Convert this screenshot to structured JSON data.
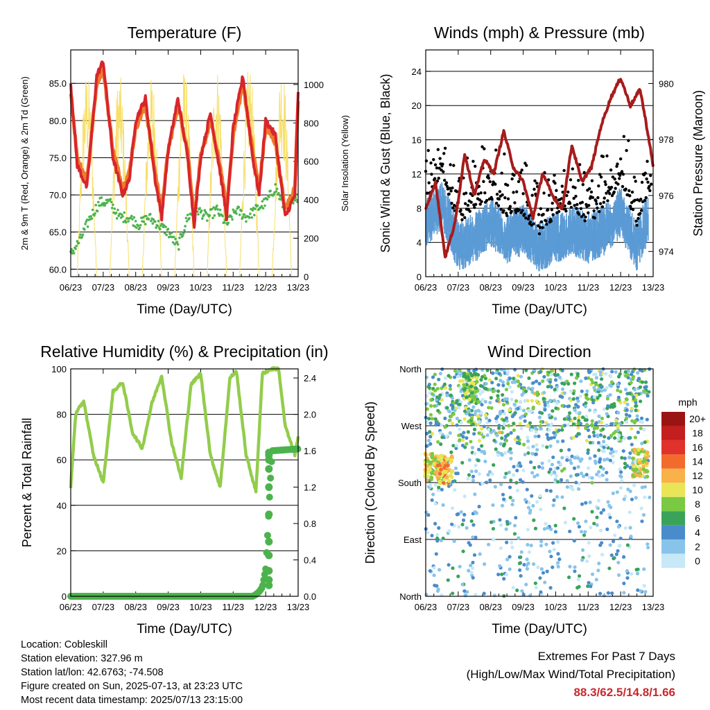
{
  "ticks_x": [
    "06/23",
    "07/23",
    "08/23",
    "09/23",
    "10/23",
    "11/23",
    "12/23",
    "13/23"
  ],
  "info": {
    "location": "Location: Cobleskill",
    "elevation": "Station elevation: 327.96 m",
    "latlon": "Station lat/lon: 42.6763; -74.508",
    "created": "Figure created on Sun, 2025-07-13, at 23:23 UTC",
    "timestamp": "Most recent data timestamp: 2025/07/13 23:15:00"
  },
  "extremes": {
    "title": "Extremes For Past 7 Days",
    "subtitle": "(High/Low/Max Wind/Total Precipitation)",
    "values": "88.3/62.5/14.8/1.66"
  },
  "chart_data": [
    {
      "type": "line",
      "title": "Temperature (F)",
      "xlabel": "Time (Day/UTC)",
      "ylabel": "2m & 9m T (Red, Orange) & 2m Td (Green)",
      "ylabel_right": "Solar Insolation (Yellow)",
      "ylim": [
        59,
        89.5
      ],
      "ylim_right": [
        0,
        1180
      ],
      "yticks": [
        "60.0",
        "65.0",
        "70.0",
        "75.0",
        "80.0",
        "85.0"
      ],
      "yticks_right": [
        "0",
        "200",
        "400",
        "600",
        "800",
        "1000"
      ],
      "grid": true,
      "series": [
        {
          "x": [
            0,
            0.2,
            0.5,
            0.8,
            1.0,
            1.3,
            1.6,
            1.8,
            2.0,
            2.3,
            2.6,
            2.8,
            3.0,
            3.3,
            3.6,
            3.8,
            4.0,
            4.3,
            4.6,
            4.8,
            5.0,
            5.3,
            5.6,
            5.8,
            6.0,
            6.3,
            6.6,
            6.9,
            7.0
          ],
          "values": [
            85,
            74,
            71,
            86,
            88,
            75,
            70,
            72,
            80,
            83,
            72,
            67,
            76,
            83,
            75,
            66,
            75,
            81,
            73,
            67,
            79,
            86,
            75,
            70,
            80,
            78,
            67,
            70,
            84
          ],
          "color": "#d7262b"
        },
        {
          "x": [
            0,
            0.2,
            0.5,
            0.8,
            1.0,
            1.3,
            1.6,
            1.8,
            2.0,
            2.3,
            2.6,
            2.8,
            3.0,
            3.3,
            3.6,
            3.8,
            4.0,
            4.3,
            4.6,
            4.8,
            5.0,
            5.3,
            5.6,
            5.8,
            6.0,
            6.3,
            6.6,
            6.9,
            7.0
          ],
          "values": [
            84,
            75,
            72,
            85,
            87,
            76,
            71,
            73,
            79,
            82,
            73,
            68,
            76,
            82,
            76,
            67,
            75,
            80,
            74,
            68,
            78,
            85,
            76,
            71,
            79,
            77,
            68,
            71,
            83
          ],
          "color": "#f07a2a"
        },
        {
          "x": [
            0,
            0.3,
            0.6,
            0.9,
            1.2,
            1.5,
            1.8,
            2.1,
            2.4,
            2.7,
            3.0,
            3.3,
            3.6,
            3.9,
            4.2,
            4.5,
            4.8,
            5.1,
            5.4,
            5.7,
            6.0,
            6.3,
            6.6,
            6.9,
            7.0
          ],
          "values": [
            62,
            64,
            67,
            69,
            69,
            67,
            67,
            66,
            67,
            66,
            65,
            63,
            67,
            68,
            67,
            68,
            66,
            68,
            67,
            68,
            69,
            71,
            68,
            69,
            70
          ],
          "color": "#4cb34c"
        },
        {
          "peaks_x": [
            0.5,
            1.5,
            2.5,
            3.5,
            4.5,
            5.5,
            6.5
          ],
          "peaks_values": [
            1080,
            1060,
            1050,
            1090,
            1100,
            1110,
            1120
          ],
          "color": "#f7df6a",
          "axis": "right"
        }
      ]
    },
    {
      "type": "line",
      "title": "Winds (mph) & Pressure (mb)",
      "xlabel": "Time (Day/UTC)",
      "ylabel": "Sonic Wind & Gust (Blue, Black)",
      "ylabel_right": "Station Pressure (Maroon)",
      "ylim": [
        0,
        26.5
      ],
      "ylim_right": [
        973.1,
        981.2
      ],
      "yticks": [
        "0",
        "4",
        "8",
        "12",
        "16",
        "20",
        "24"
      ],
      "yticks_right": [
        "974",
        "976",
        "978",
        "980"
      ],
      "grid": true,
      "series": [
        {
          "x": [
            0,
            0.3,
            0.6,
            0.9,
            1.2,
            1.5,
            1.8,
            2.1,
            2.4,
            2.7,
            3.0,
            3.3,
            3.6,
            3.9,
            4.2,
            4.5,
            4.8,
            5.1,
            5.4,
            5.7,
            6.0,
            6.3,
            6.6,
            6.9,
            7.0
          ],
          "values": [
            975.5,
            976.5,
            973.8,
            975.0,
            977.5,
            976.0,
            977.3,
            976.8,
            978.3,
            977.0,
            976.5,
            975.2,
            976.8,
            976.0,
            975.5,
            977.8,
            976.5,
            977.0,
            978.5,
            979.5,
            980.2,
            979.2,
            979.8,
            977.8,
            977.0
          ],
          "color": "#a61c1c",
          "axis": "right"
        },
        {
          "x": [
            0,
            0.5,
            1.0,
            1.5,
            2.0,
            2.5,
            3.0,
            3.5,
            4.0,
            4.5,
            5.0,
            5.5,
            6.0,
            6.5,
            7.0
          ],
          "values": [
            6,
            8,
            3,
            4,
            6,
            4,
            5,
            3,
            4,
            5,
            4,
            5,
            7,
            3,
            8
          ],
          "color": "#5b9bd5",
          "name": "Sonic Wind"
        },
        {
          "x": [
            0,
            0.5,
            1.0,
            1.5,
            2.0,
            2.5,
            3.0,
            3.5,
            4.0,
            4.5,
            5.0,
            5.5,
            6.0,
            6.5,
            7.0
          ],
          "values": [
            10,
            14,
            8,
            10,
            11,
            9,
            9,
            7,
            9,
            10,
            8,
            10,
            13,
            8,
            13
          ],
          "color": "#000000",
          "name": "Gust"
        }
      ]
    },
    {
      "type": "line",
      "title": "Relative Humidity (%) & Precipitation (in)",
      "xlabel": "Time (Day/UTC)",
      "ylabel": "Percent & Total Rainfall",
      "ylim": [
        0,
        100
      ],
      "ylim_right": [
        0,
        2.5
      ],
      "yticks": [
        "0",
        "20",
        "40",
        "60",
        "80",
        "100"
      ],
      "yticks_right": [
        "0.0",
        "0.4",
        "0.8",
        "1.2",
        "1.6",
        "2.0",
        "2.4"
      ],
      "grid": true,
      "series": [
        {
          "x": [
            0,
            0.15,
            0.4,
            0.7,
            1.0,
            1.3,
            1.6,
            1.9,
            2.2,
            2.5,
            2.8,
            3.1,
            3.4,
            3.7,
            4.0,
            4.3,
            4.6,
            4.9,
            5.1,
            5.4,
            5.7,
            5.9,
            6.2,
            6.4,
            6.6,
            6.9,
            7.0
          ],
          "values": [
            48,
            80,
            86,
            62,
            50,
            90,
            94,
            72,
            65,
            85,
            97,
            68,
            52,
            93,
            98,
            62,
            48,
            96,
            99,
            62,
            46,
            98,
            100,
            100,
            75,
            62,
            70
          ],
          "color": "#93cc4c"
        },
        {
          "x": [
            0,
            5.6,
            5.7,
            5.8,
            5.9,
            6.0,
            6.05,
            6.1,
            6.15,
            6.2,
            7.0
          ],
          "values": [
            0,
            0,
            0.02,
            0.05,
            0.1,
            0.3,
            0.6,
            0.95,
            1.3,
            1.6,
            1.62
          ],
          "color": "#4cb34c",
          "axis": "right"
        }
      ]
    },
    {
      "type": "scatter",
      "title": "Wind Direction",
      "xlabel": "Time (Day/UTC)",
      "ylabel": "Direction (Colored By Speed)",
      "yticks": [
        "North",
        "East",
        "South",
        "West",
        "North"
      ],
      "ylim": [
        0,
        360
      ],
      "grid": true,
      "colorbar": {
        "title": "mph",
        "labels": [
          "0",
          "2",
          "4",
          "6",
          "8",
          "10",
          "12",
          "14",
          "16",
          "18",
          "20+"
        ],
        "colors": [
          "#c6e8f7",
          "#88c4ea",
          "#4a8ccb",
          "#3aa35a",
          "#7ac943",
          "#e8e556",
          "#f9b14a",
          "#f36a2d",
          "#e0312a",
          "#c41e1e",
          "#9b1414"
        ]
      }
    }
  ]
}
